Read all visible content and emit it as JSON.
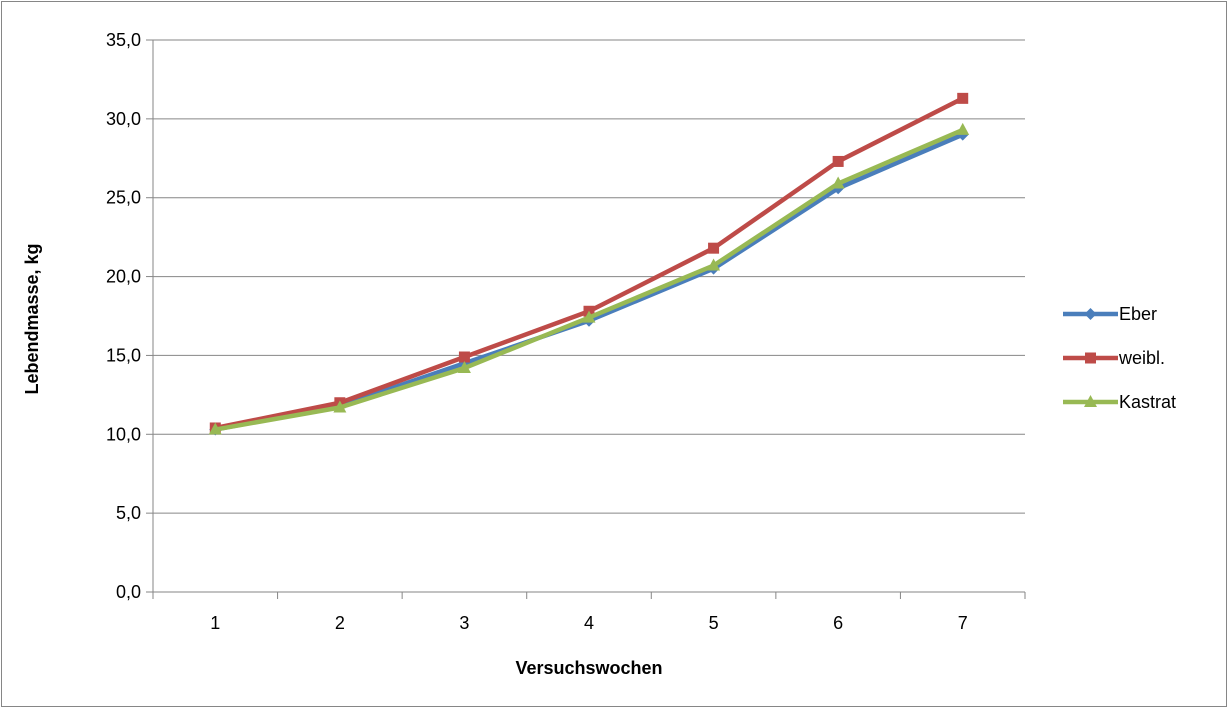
{
  "chart_data": {
    "type": "line",
    "xlabel": "Versuchswochen",
    "ylabel": "Lebendmasse, kg",
    "categories": [
      "1",
      "2",
      "3",
      "4",
      "5",
      "6",
      "7"
    ],
    "ylim": [
      0,
      35
    ],
    "yticks": [
      "0,0",
      "5,0",
      "10,0",
      "15,0",
      "20,0",
      "25,0",
      "30,0",
      "35,0"
    ],
    "grid": "horizontal major gridlines",
    "legend_position": "right",
    "series": [
      {
        "name": "Eber",
        "color": "#4a7ebb",
        "marker": "diamond",
        "values": [
          10.3,
          11.8,
          14.5,
          17.2,
          20.5,
          25.6,
          29.0
        ]
      },
      {
        "name": "weibl.",
        "color": "#be4b48",
        "marker": "square",
        "values": [
          10.4,
          12.0,
          14.9,
          17.8,
          21.8,
          27.3,
          31.3
        ]
      },
      {
        "name": "Kastrat",
        "color": "#98b954",
        "marker": "triangle",
        "values": [
          10.3,
          11.7,
          14.2,
          17.4,
          20.7,
          25.9,
          29.3
        ]
      }
    ]
  }
}
